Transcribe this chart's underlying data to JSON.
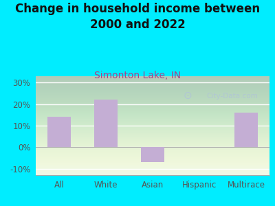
{
  "title": "Change in household income between\n2000 and 2022",
  "subtitle": "Simonton Lake, IN",
  "categories": [
    "All",
    "White",
    "Asian",
    "Hispanic",
    "Multirace"
  ],
  "values": [
    14,
    22,
    -7,
    0,
    16
  ],
  "bar_color": "#c4aed4",
  "title_fontsize": 12,
  "subtitle_fontsize": 10,
  "tick_fontsize": 8.5,
  "background_outer": "#00edff",
  "plot_bg_color": "#eef7e8",
  "ylim": [
    -13,
    33
  ],
  "yticks": [
    -10,
    0,
    10,
    20,
    30
  ],
  "ytick_labels": [
    "-10%",
    "0%",
    "10%",
    "20%",
    "30%"
  ],
  "title_color": "#111111",
  "subtitle_color": "#aa4488",
  "tick_color": "#555555",
  "watermark": "City-Data.com",
  "watermark_color": "#b0c4d8",
  "grid_color": "#ffffff",
  "spine_color": "#aaaaaa"
}
